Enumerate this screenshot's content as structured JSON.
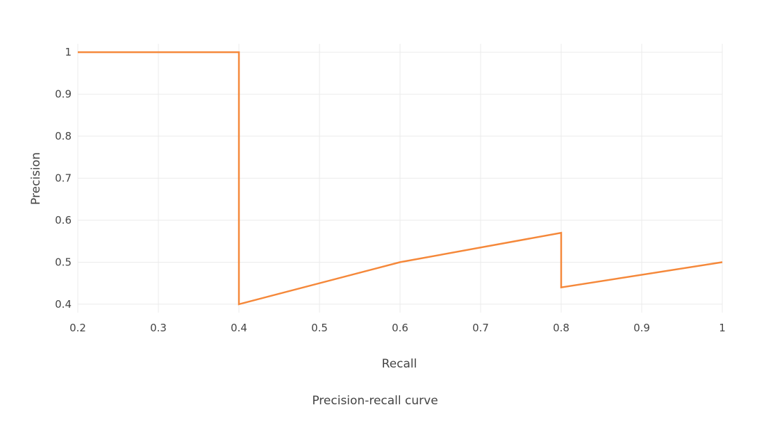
{
  "chart_data": {
    "type": "line",
    "title": "",
    "caption": "Precision-recall curve",
    "xlabel": "Recall",
    "ylabel": "Precision",
    "xlim": [
      0.2,
      1
    ],
    "ylim": [
      0.38,
      1.02
    ],
    "x_ticks": [
      0.2,
      0.3,
      0.4,
      0.5,
      0.6,
      0.7,
      0.8,
      0.9,
      1
    ],
    "x_tick_labels": [
      "0.2",
      "0.3",
      "0.4",
      "0.5",
      "0.6",
      "0.7",
      "0.8",
      "0.9",
      "1"
    ],
    "y_ticks": [
      0.4,
      0.5,
      0.6,
      0.7,
      0.8,
      0.9,
      1
    ],
    "y_tick_labels": [
      "0.4",
      "0.5",
      "0.6",
      "0.7",
      "0.8",
      "0.9",
      "1"
    ],
    "grid": true,
    "legend": "none",
    "series": [
      {
        "color": "#f5883a",
        "x": [
          0.2,
          0.4,
          0.4,
          0.6,
          0.8,
          0.8,
          1.0
        ],
        "y": [
          1.0,
          1.0,
          0.4,
          0.5,
          0.57,
          0.44,
          0.5
        ]
      }
    ]
  }
}
